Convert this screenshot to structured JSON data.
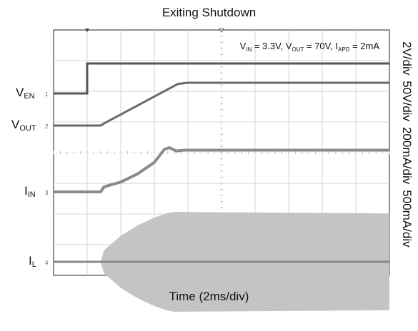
{
  "chart_data": {
    "type": "line",
    "title": "Exiting Shutdown",
    "xlabel": "Time (2ms/div)",
    "conditions": {
      "vin": {
        "sym": "V",
        "sub": "IN",
        "value": " = 3.3V"
      },
      "vout": {
        "sym": "V",
        "sub": "OUT",
        "value": " = 70V"
      },
      "iapd": {
        "sym": "I",
        "sub": "APD",
        "value": " = 2mA"
      }
    },
    "divisions": {
      "x": 10,
      "y": 8
    },
    "time_per_div_ms": 2,
    "channels": [
      {
        "id": "1",
        "sym": "V",
        "sub": "EN",
        "scale": "2V/div",
        "t": [
          0,
          2.0,
          2.0,
          20
        ],
        "v": [
          0,
          0,
          4.1,
          4.1
        ]
      },
      {
        "id": "2",
        "sym": "V",
        "sub": "OUT",
        "scale": "50V/div",
        "t": [
          0,
          2.8,
          3.1,
          7.4,
          8.0,
          20
        ],
        "v": [
          0,
          0,
          5,
          70,
          72,
          72
        ]
      },
      {
        "id": "3",
        "sym": "I",
        "sub": "IN",
        "scale": "200mA/div",
        "t": [
          0,
          2.8,
          3.0,
          3.3,
          4.0,
          5.0,
          6.0,
          6.6,
          6.9,
          7.3,
          7.8,
          20
        ],
        "v": [
          0,
          0,
          30,
          40,
          60,
          110,
          180,
          260,
          270,
          250,
          255,
          255
        ]
      },
      {
        "id": "4",
        "sym": "I",
        "sub": "L",
        "scale": "500mA/div",
        "t": [
          0,
          2.8,
          3.0,
          4.0,
          5.0,
          6.0,
          6.8,
          7.2,
          20
        ],
        "v": [
          0,
          0,
          220,
          500,
          700,
          850,
          940,
          960,
          930
        ],
        "envelope": true
      }
    ],
    "grid": true
  }
}
